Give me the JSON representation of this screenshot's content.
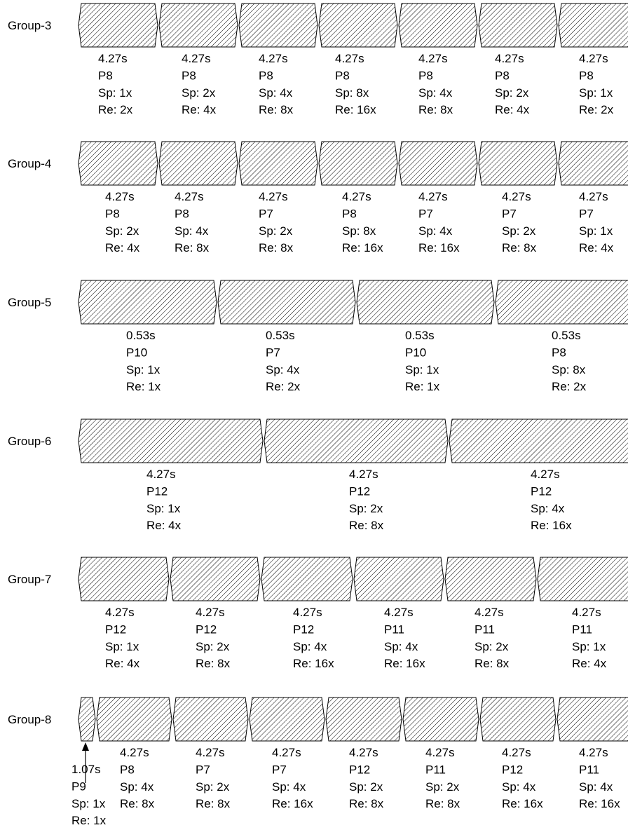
{
  "groups": [
    {
      "label": "Group-3",
      "segments": [
        {
          "time": "4.27s",
          "p": "P8",
          "sp": "Sp: 1x",
          "re": "Re: 2x"
        },
        {
          "time": "4.27s",
          "p": "P8",
          "sp": "Sp: 2x",
          "re": "Re: 4x"
        },
        {
          "time": "4.27s",
          "p": "P8",
          "sp": "Sp: 4x",
          "re": "Re: 8x"
        },
        {
          "time": "4.27s",
          "p": "P8",
          "sp": "Sp: 8x",
          "re": "Re: 16x"
        },
        {
          "time": "4.27s",
          "p": "P8",
          "sp": "Sp: 4x",
          "re": "Re: 8x"
        },
        {
          "time": "4.27s",
          "p": "P8",
          "sp": "Sp: 2x",
          "re": "Re: 4x"
        },
        {
          "time": "4.27s",
          "p": "P8",
          "sp": "Sp: 1x",
          "re": "Re: 2x"
        }
      ]
    },
    {
      "label": "Group-4",
      "segments": [
        {
          "time": "4.27s",
          "p": "P8",
          "sp": "Sp: 2x",
          "re": "Re: 4x"
        },
        {
          "time": "4.27s",
          "p": "P8",
          "sp": "Sp: 4x",
          "re": "Re: 8x"
        },
        {
          "time": "4.27s",
          "p": "P7",
          "sp": "Sp: 2x",
          "re": "Re: 8x"
        },
        {
          "time": "4.27s",
          "p": "P8",
          "sp": "Sp: 8x",
          "re": "Re: 16x"
        },
        {
          "time": "4.27s",
          "p": "P7",
          "sp": "Sp: 4x",
          "re": "Re: 16x"
        },
        {
          "time": "4.27s",
          "p": "P7",
          "sp": "Sp: 2x",
          "re": "Re: 8x"
        },
        {
          "time": "4.27s",
          "p": "P7",
          "sp": "Sp: 1x",
          "re": "Re: 4x"
        }
      ]
    },
    {
      "label": "Group-5",
      "segments": [
        {
          "time": "0.53s",
          "p": "P10",
          "sp": "Sp: 1x",
          "re": "Re: 1x"
        },
        {
          "time": "0.53s",
          "p": "P7",
          "sp": "Sp: 4x",
          "re": "Re: 2x"
        },
        {
          "time": "0.53s",
          "p": "P10",
          "sp": "Sp: 1x",
          "re": "Re: 1x"
        },
        {
          "time": "0.53s",
          "p": "P8",
          "sp": "Sp: 8x",
          "re": "Re: 2x"
        }
      ]
    },
    {
      "label": "Group-6",
      "segments": [
        {
          "time": "4.27s",
          "p": "P12",
          "sp": "Sp: 1x",
          "re": "Re: 4x"
        },
        {
          "time": "4.27s",
          "p": "P12",
          "sp": "Sp: 2x",
          "re": "Re: 8x"
        },
        {
          "time": "4.27s",
          "p": "P12",
          "sp": "Sp: 4x",
          "re": "Re: 16x"
        }
      ]
    },
    {
      "label": "Group-7",
      "segments": [
        {
          "time": "4.27s",
          "p": "P12",
          "sp": "Sp: 1x",
          "re": "Re: 4x"
        },
        {
          "time": "4.27s",
          "p": "P12",
          "sp": "Sp: 2x",
          "re": "Re: 8x"
        },
        {
          "time": "4.27s",
          "p": "P12",
          "sp": "Sp: 4x",
          "re": "Re: 16x"
        },
        {
          "time": "4.27s",
          "p": "P11",
          "sp": "Sp: 4x",
          "re": "Re: 16x"
        },
        {
          "time": "4.27s",
          "p": "P11",
          "sp": "Sp: 2x",
          "re": "Re: 8x"
        },
        {
          "time": "4.27s",
          "p": "P11",
          "sp": "Sp: 1x",
          "re": "Re: 4x"
        }
      ]
    },
    {
      "label": "Group-8",
      "segments": [
        {
          "time": "1.07s",
          "p": "P9",
          "sp": "Sp: 1x",
          "re": "Re: 1x"
        },
        {
          "time": "4.27s",
          "p": "P8",
          "sp": "Sp: 4x",
          "re": "Re: 8x"
        },
        {
          "time": "4.27s",
          "p": "P7",
          "sp": "Sp: 2x",
          "re": "Re: 8x"
        },
        {
          "time": "4.27s",
          "p": "P7",
          "sp": "Sp: 4x",
          "re": "Re: 16x"
        },
        {
          "time": "4.27s",
          "p": "P12",
          "sp": "Sp: 2x",
          "re": "Re: 8x"
        },
        {
          "time": "4.27s",
          "p": "P11",
          "sp": "Sp: 2x",
          "re": "Re: 8x"
        },
        {
          "time": "4.27s",
          "p": "P12",
          "sp": "Sp: 4x",
          "re": "Re: 16x"
        },
        {
          "time": "4.27s",
          "p": "P11",
          "sp": "Sp: 4x",
          "re": "Re: 16x"
        }
      ]
    }
  ]
}
